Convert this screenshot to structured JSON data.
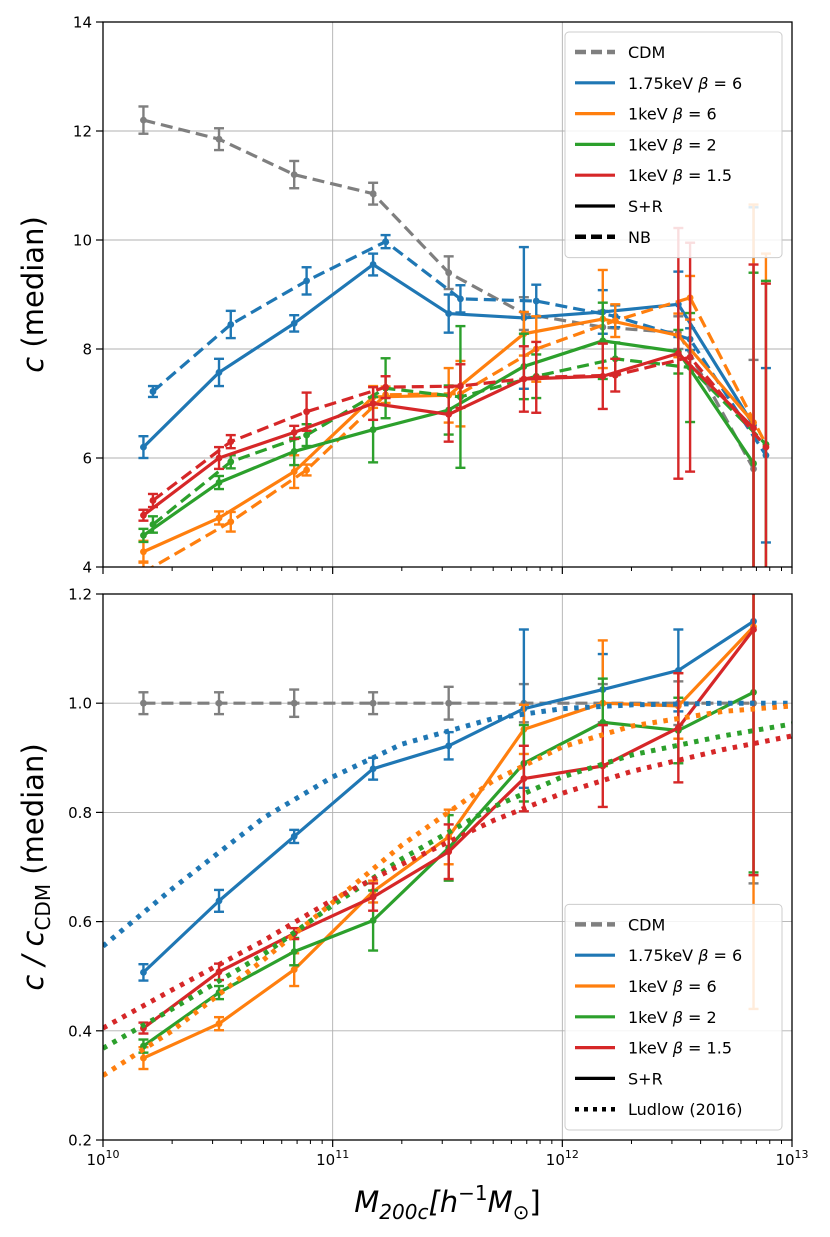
{
  "x_axis": {
    "label": "M_{200c}[h^{-1}M_{\\odot}]",
    "label_display": {
      "main": "M",
      "sub": "200c",
      "bracket_open": "[h",
      "sup": "−1",
      "mid": "M",
      "sub2": "⊙",
      "bracket_close": "]"
    },
    "tick_labels": [
      {
        "base": "10",
        "exp": "10",
        "value": 10000000000.0
      },
      {
        "base": "10",
        "exp": "11",
        "value": 100000000000.0
      },
      {
        "base": "10",
        "exp": "12",
        "value": 1000000000000.0
      },
      {
        "base": "10",
        "exp": "13",
        "value": 10000000000000.0
      }
    ]
  },
  "chart_data": [
    {
      "type": "line",
      "panel": "top",
      "title": "",
      "xlabel": "",
      "ylabel": "c (median)",
      "xscale": "log",
      "xlim": [
        10000000000.0,
        10000000000000.0
      ],
      "ylim": [
        4,
        14
      ],
      "yticks": [
        4,
        6,
        8,
        10,
        12,
        14
      ],
      "ytick_labels": [
        "4",
        "6",
        "8",
        "10",
        "12",
        "14"
      ],
      "grid": true,
      "legend": {
        "placement": "top-right",
        "entries": [
          {
            "label": "CDM",
            "color": "#7f7f7f",
            "style": "dashed"
          },
          {
            "label": "1.75keV β = 6",
            "color": "#1f77b4",
            "style": "solid"
          },
          {
            "label": "1keV β = 6",
            "color": "#ff7f0e",
            "style": "solid"
          },
          {
            "label": "1keV β = 2",
            "color": "#2ca02c",
            "style": "solid"
          },
          {
            "label": "1keV β = 1.5",
            "color": "#d62728",
            "style": "solid"
          },
          {
            "label": "S+R",
            "color": "#000000",
            "style": "solid"
          },
          {
            "label": "NB",
            "color": "#000000",
            "style": "dashed"
          }
        ]
      },
      "series": [
        {
          "model": "CDM",
          "method": "NB",
          "color": "#7f7f7f",
          "style": "dashed",
          "x": [
            15000000000.0,
            32000000000.0,
            68000000000.0,
            150000000000.0,
            320000000000.0,
            680000000000.0,
            1500000000000.0,
            3200000000000.0,
            6800000000000.0
          ],
          "y": [
            12.2,
            11.85,
            11.2,
            10.85,
            9.4,
            8.65,
            8.4,
            8.3,
            5.8
          ],
          "err": [
            0.25,
            0.2,
            0.25,
            0.2,
            0.3,
            0.3,
            0.3,
            0.3,
            2.0
          ]
        },
        {
          "model": "1.75keV β = 6",
          "method": "S+R",
          "color": "#1f77b4",
          "style": "solid",
          "x": [
            15000000000.0,
            32000000000.0,
            68000000000.0,
            150000000000.0,
            320000000000.0,
            680000000000.0,
            1500000000000.0,
            3200000000000.0,
            6800000000000.0
          ],
          "y": [
            6.2,
            7.57,
            8.47,
            9.55,
            8.65,
            8.57,
            8.68,
            8.82,
            6.6
          ],
          "err": [
            0.2,
            0.25,
            0.15,
            0.2,
            0.35,
            1.3,
            0.4,
            0.6,
            4.0
          ]
        },
        {
          "model": "1.75keV β = 6",
          "method": "NB",
          "color": "#1f77b4",
          "style": "dashed",
          "x": [
            16500000000.0,
            36000000000.0,
            77000000000.0,
            170000000000.0,
            360000000000.0,
            770000000000.0,
            1700000000000.0,
            3600000000000.0,
            7700000000000.0
          ],
          "y": [
            7.22,
            8.45,
            9.25,
            9.97,
            8.92,
            8.88,
            8.6,
            8.18,
            6.05
          ],
          "err": [
            0.1,
            0.25,
            0.25,
            0.12,
            0.25,
            0.3,
            0.2,
            0.2,
            1.6
          ]
        },
        {
          "model": "1keV β = 6",
          "method": "S+R",
          "color": "#ff7f0e",
          "style": "solid",
          "x": [
            15000000000.0,
            32000000000.0,
            68000000000.0,
            150000000000.0,
            320000000000.0,
            680000000000.0,
            1500000000000.0,
            3200000000000.0,
            6800000000000.0
          ],
          "y": [
            4.28,
            4.9,
            5.75,
            7.12,
            7.15,
            8.28,
            8.55,
            8.25,
            6.65
          ],
          "err": [
            0.2,
            0.12,
            0.3,
            0.2,
            0.5,
            0.4,
            0.9,
            0.4,
            4.0
          ]
        },
        {
          "model": "1keV β = 6",
          "method": "NB",
          "color": "#ff7f0e",
          "style": "dashed",
          "x": [
            15000000000.0,
            36000000000.0,
            77000000000.0,
            170000000000.0,
            360000000000.0,
            770000000000.0,
            1700000000000.0,
            3600000000000.0,
            7700000000000.0
          ],
          "y": [
            3.9,
            4.83,
            5.78,
            7.16,
            7.18,
            8.0,
            8.52,
            8.94,
            6.25
          ],
          "err": [
            0.2,
            0.18,
            0.1,
            0.15,
            0.6,
            0.6,
            0.3,
            0.4,
            3.5
          ]
        },
        {
          "model": "1keV β = 2",
          "method": "S+R",
          "color": "#2ca02c",
          "style": "solid",
          "x": [
            15000000000.0,
            32000000000.0,
            68000000000.0,
            150000000000.0,
            320000000000.0,
            680000000000.0,
            1500000000000.0,
            3200000000000.0,
            6800000000000.0
          ],
          "y": [
            4.58,
            5.55,
            6.12,
            6.52,
            6.88,
            7.68,
            8.15,
            7.95,
            5.9
          ],
          "err": [
            0.12,
            0.12,
            0.25,
            0.6,
            0.45,
            0.6,
            0.7,
            0.4,
            3.5
          ]
        },
        {
          "model": "1keV β = 2",
          "method": "NB",
          "color": "#2ca02c",
          "style": "dashed",
          "x": [
            16500000000.0,
            36000000000.0,
            77000000000.0,
            170000000000.0,
            360000000000.0,
            770000000000.0,
            1700000000000.0,
            3600000000000.0,
            7700000000000.0
          ],
          "y": [
            4.78,
            5.93,
            6.42,
            7.28,
            7.12,
            7.5,
            7.82,
            7.66,
            6.25
          ],
          "err": [
            0.15,
            0.12,
            0.2,
            0.55,
            1.3,
            0.4,
            0.3,
            1.0,
            3.0
          ]
        },
        {
          "model": "1keV β = 1.5",
          "method": "S+R",
          "color": "#d62728",
          "style": "solid",
          "x": [
            15000000000.0,
            32000000000.0,
            68000000000.0,
            150000000000.0,
            320000000000.0,
            680000000000.0,
            1500000000000.0,
            3200000000000.0,
            6800000000000.0
          ],
          "y": [
            4.95,
            6.0,
            6.47,
            7.0,
            6.8,
            7.45,
            7.5,
            7.92,
            6.55
          ],
          "err": [
            0.1,
            0.2,
            0.12,
            0.3,
            0.5,
            0.6,
            0.6,
            2.3,
            3.0
          ]
        },
        {
          "model": "1keV β = 1.5",
          "method": "NB",
          "color": "#d62728",
          "style": "dashed",
          "x": [
            16500000000.0,
            36000000000.0,
            77000000000.0,
            170000000000.0,
            360000000000.0,
            770000000000.0,
            1700000000000.0,
            3600000000000.0,
            7700000000000.0
          ],
          "y": [
            5.22,
            6.3,
            6.85,
            7.3,
            7.32,
            7.48,
            7.52,
            7.85,
            6.2
          ],
          "err": [
            0.12,
            0.12,
            0.35,
            0.2,
            0.4,
            0.65,
            0.3,
            2.1,
            3.0
          ]
        }
      ]
    },
    {
      "type": "line",
      "panel": "bottom",
      "title": "",
      "xlabel": "M_{200c}[h^{-1}M_{\\odot}]",
      "ylabel": "c / c_CDM (median)",
      "ylabel_display": {
        "pre": "c / c",
        "sub": "CDM",
        "post": " (median)"
      },
      "xscale": "log",
      "xlim": [
        10000000000.0,
        10000000000000.0
      ],
      "ylim": [
        0.2,
        1.2
      ],
      "yticks": [
        0.2,
        0.4,
        0.6,
        0.8,
        1.0,
        1.2
      ],
      "ytick_labels": [
        "0.2",
        "0.4",
        "0.6",
        "0.8",
        "1.0",
        "1.2"
      ],
      "grid": true,
      "legend": {
        "placement": "bottom-right",
        "entries": [
          {
            "label": "CDM",
            "color": "#7f7f7f",
            "style": "dashed"
          },
          {
            "label": "1.75keV β = 6",
            "color": "#1f77b4",
            "style": "solid"
          },
          {
            "label": "1keV β = 6",
            "color": "#ff7f0e",
            "style": "solid"
          },
          {
            "label": "1keV β = 2",
            "color": "#2ca02c",
            "style": "solid"
          },
          {
            "label": "1keV β = 1.5",
            "color": "#d62728",
            "style": "solid"
          },
          {
            "label": "S+R",
            "color": "#000000",
            "style": "solid"
          },
          {
            "label": "Ludlow (2016)",
            "color": "#000000",
            "style": "dotted"
          }
        ]
      },
      "series": [
        {
          "model": "CDM",
          "method": "S+R",
          "color": "#7f7f7f",
          "style": "dashed",
          "x": [
            15000000000.0,
            32000000000.0,
            68000000000.0,
            150000000000.0,
            320000000000.0,
            680000000000.0,
            1500000000000.0,
            3200000000000.0,
            6800000000000.0
          ],
          "y": [
            1.0,
            1.0,
            1.0,
            1.0,
            1.0,
            1.0,
            1.0,
            1.0,
            1.0
          ],
          "err": [
            0.02,
            0.02,
            0.025,
            0.02,
            0.03,
            0.035,
            0.035,
            0.04,
            0.33
          ]
        },
        {
          "model": "1.75keV β = 6",
          "method": "S+R",
          "color": "#1f77b4",
          "style": "solid",
          "x": [
            15000000000.0,
            32000000000.0,
            68000000000.0,
            150000000000.0,
            320000000000.0,
            680000000000.0,
            1500000000000.0,
            3200000000000.0,
            6800000000000.0
          ],
          "y": [
            0.507,
            0.638,
            0.756,
            0.88,
            0.922,
            0.99,
            1.025,
            1.06,
            1.15
          ],
          "err": [
            0.015,
            0.02,
            0.012,
            0.02,
            0.025,
            0.145,
            0.065,
            0.075,
            0.0
          ]
        },
        {
          "model": "1keV β = 6",
          "method": "S+R",
          "color": "#ff7f0e",
          "style": "solid",
          "x": [
            15000000000.0,
            32000000000.0,
            68000000000.0,
            150000000000.0,
            320000000000.0,
            680000000000.0,
            1500000000000.0,
            3200000000000.0,
            6800000000000.0
          ],
          "y": [
            0.35,
            0.413,
            0.512,
            0.655,
            0.755,
            0.952,
            1.0,
            0.995,
            1.14
          ],
          "err": [
            0.02,
            0.012,
            0.03,
            0.02,
            0.05,
            0.045,
            0.115,
            0.06,
            0.7
          ]
        },
        {
          "model": "1keV β = 2",
          "method": "S+R",
          "color": "#2ca02c",
          "style": "solid",
          "x": [
            15000000000.0,
            32000000000.0,
            68000000000.0,
            150000000000.0,
            320000000000.0,
            680000000000.0,
            1500000000000.0,
            3200000000000.0,
            6800000000000.0
          ],
          "y": [
            0.372,
            0.47,
            0.545,
            0.602,
            0.735,
            0.89,
            0.965,
            0.95,
            1.02
          ],
          "err": [
            0.012,
            0.012,
            0.025,
            0.055,
            0.06,
            0.07,
            0.08,
            0.06,
            0.33
          ]
        },
        {
          "model": "1keV β = 1.5",
          "method": "S+R",
          "color": "#d62728",
          "style": "solid",
          "x": [
            15000000000.0,
            32000000000.0,
            68000000000.0,
            150000000000.0,
            320000000000.0,
            680000000000.0,
            1500000000000.0,
            3200000000000.0,
            6800000000000.0
          ],
          "y": [
            0.405,
            0.508,
            0.578,
            0.645,
            0.728,
            0.862,
            0.885,
            0.955,
            1.135
          ],
          "err": [
            0.01,
            0.015,
            0.01,
            0.025,
            0.05,
            0.06,
            0.075,
            0.1,
            0.45
          ]
        },
        {
          "model": "1.75keV β = 6",
          "method": "Ludlow (2016)",
          "color": "#1f77b4",
          "style": "dotted",
          "x": [
            10000000000.0,
            20000000000.0,
            50000000000.0,
            100000000000.0,
            200000000000.0,
            500000000000.0,
            1000000000000.0,
            2000000000000.0,
            5000000000000.0,
            10000000000000.0
          ],
          "y": [
            0.555,
            0.66,
            0.79,
            0.865,
            0.925,
            0.972,
            0.99,
            0.997,
            1.0,
            1.0
          ]
        },
        {
          "model": "1keV β = 6",
          "method": "Ludlow (2016)",
          "color": "#ff7f0e",
          "style": "dotted",
          "x": [
            10000000000.0,
            20000000000.0,
            50000000000.0,
            100000000000.0,
            200000000000.0,
            500000000000.0,
            1000000000000.0,
            2000000000000.0,
            5000000000000.0,
            10000000000000.0
          ],
          "y": [
            0.318,
            0.4,
            0.53,
            0.635,
            0.74,
            0.858,
            0.92,
            0.958,
            0.985,
            0.995
          ]
        },
        {
          "model": "1keV β = 2",
          "method": "Ludlow (2016)",
          "color": "#2ca02c",
          "style": "dotted",
          "x": [
            10000000000.0,
            20000000000.0,
            50000000000.0,
            100000000000.0,
            200000000000.0,
            500000000000.0,
            1000000000000.0,
            2000000000000.0,
            5000000000000.0,
            10000000000000.0
          ],
          "y": [
            0.368,
            0.44,
            0.54,
            0.63,
            0.715,
            0.81,
            0.865,
            0.905,
            0.94,
            0.962
          ]
        },
        {
          "model": "1keV β = 1.5",
          "method": "Ludlow (2016)",
          "color": "#d62728",
          "style": "dotted",
          "x": [
            10000000000.0,
            20000000000.0,
            50000000000.0,
            100000000000.0,
            200000000000.0,
            500000000000.0,
            1000000000000.0,
            2000000000000.0,
            5000000000000.0,
            10000000000000.0
          ],
          "y": [
            0.405,
            0.475,
            0.565,
            0.64,
            0.705,
            0.785,
            0.835,
            0.875,
            0.915,
            0.94
          ]
        }
      ]
    }
  ]
}
